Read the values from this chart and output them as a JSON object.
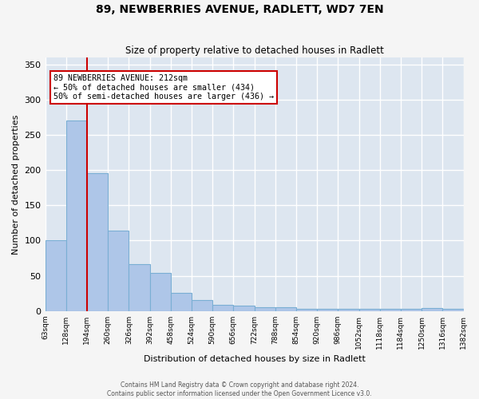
{
  "title": "89, NEWBERRIES AVENUE, RADLETT, WD7 7EN",
  "subtitle": "Size of property relative to detached houses in Radlett",
  "xlabel": "Distribution of detached houses by size in Radlett",
  "ylabel": "Number of detached properties",
  "categories": [
    "63sqm",
    "128sqm",
    "194sqm",
    "260sqm",
    "326sqm",
    "392sqm",
    "458sqm",
    "524sqm",
    "590sqm",
    "656sqm",
    "722sqm",
    "788sqm",
    "854sqm",
    "920sqm",
    "986sqm",
    "1052sqm",
    "1118sqm",
    "1184sqm",
    "1250sqm",
    "1316sqm",
    "1382sqm"
  ],
  "bar_heights": [
    100,
    271,
    196,
    114,
    67,
    54,
    26,
    16,
    9,
    8,
    5,
    5,
    3,
    3,
    3,
    3,
    3,
    3,
    4,
    3
  ],
  "bar_color": "#aec6e8",
  "bar_edge_color": "#7aafd4",
  "property_line_color": "#cc0000",
  "annotation_text": "89 NEWBERRIES AVENUE: 212sqm\n← 50% of detached houses are smaller (434)\n50% of semi-detached houses are larger (436) →",
  "annotation_box_color": "#cc0000",
  "ylim": [
    0,
    360
  ],
  "yticks": [
    0,
    50,
    100,
    150,
    200,
    250,
    300,
    350
  ],
  "background_color": "#dde6f0",
  "grid_color": "#ffffff",
  "footer_line1": "Contains HM Land Registry data © Crown copyright and database right 2024.",
  "footer_line2": "Contains public sector information licensed under the Open Government Licence v3.0."
}
